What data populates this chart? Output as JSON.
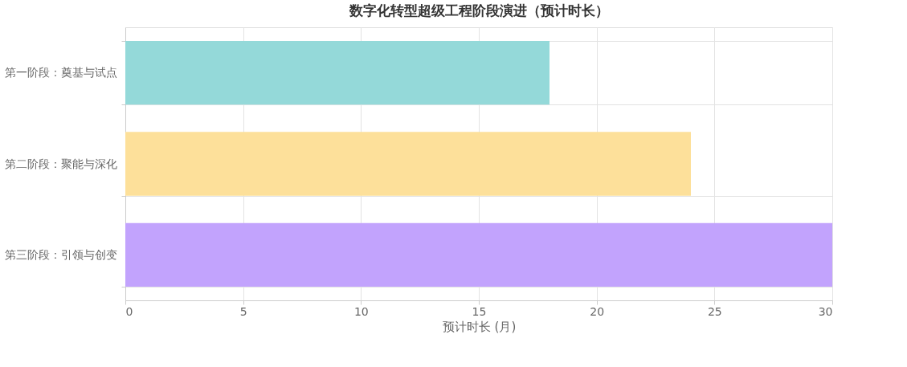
{
  "chart_data": {
    "type": "bar",
    "orientation": "horizontal",
    "title": "数字化转型超级工程阶段演进（预计时长）",
    "xlabel": "预计时长 (月)",
    "categories": [
      "第一阶段：奠基与试点",
      "第二阶段：聚能与深化",
      "第三阶段：引领与创变"
    ],
    "values": [
      18,
      24,
      30
    ],
    "colors": [
      "#94d9d9",
      "#fde09a",
      "#c2a3fd"
    ],
    "xlim": [
      0,
      30
    ],
    "xticks": [
      0,
      5,
      10,
      15,
      20,
      25,
      30
    ],
    "grid": true,
    "legend": false
  }
}
